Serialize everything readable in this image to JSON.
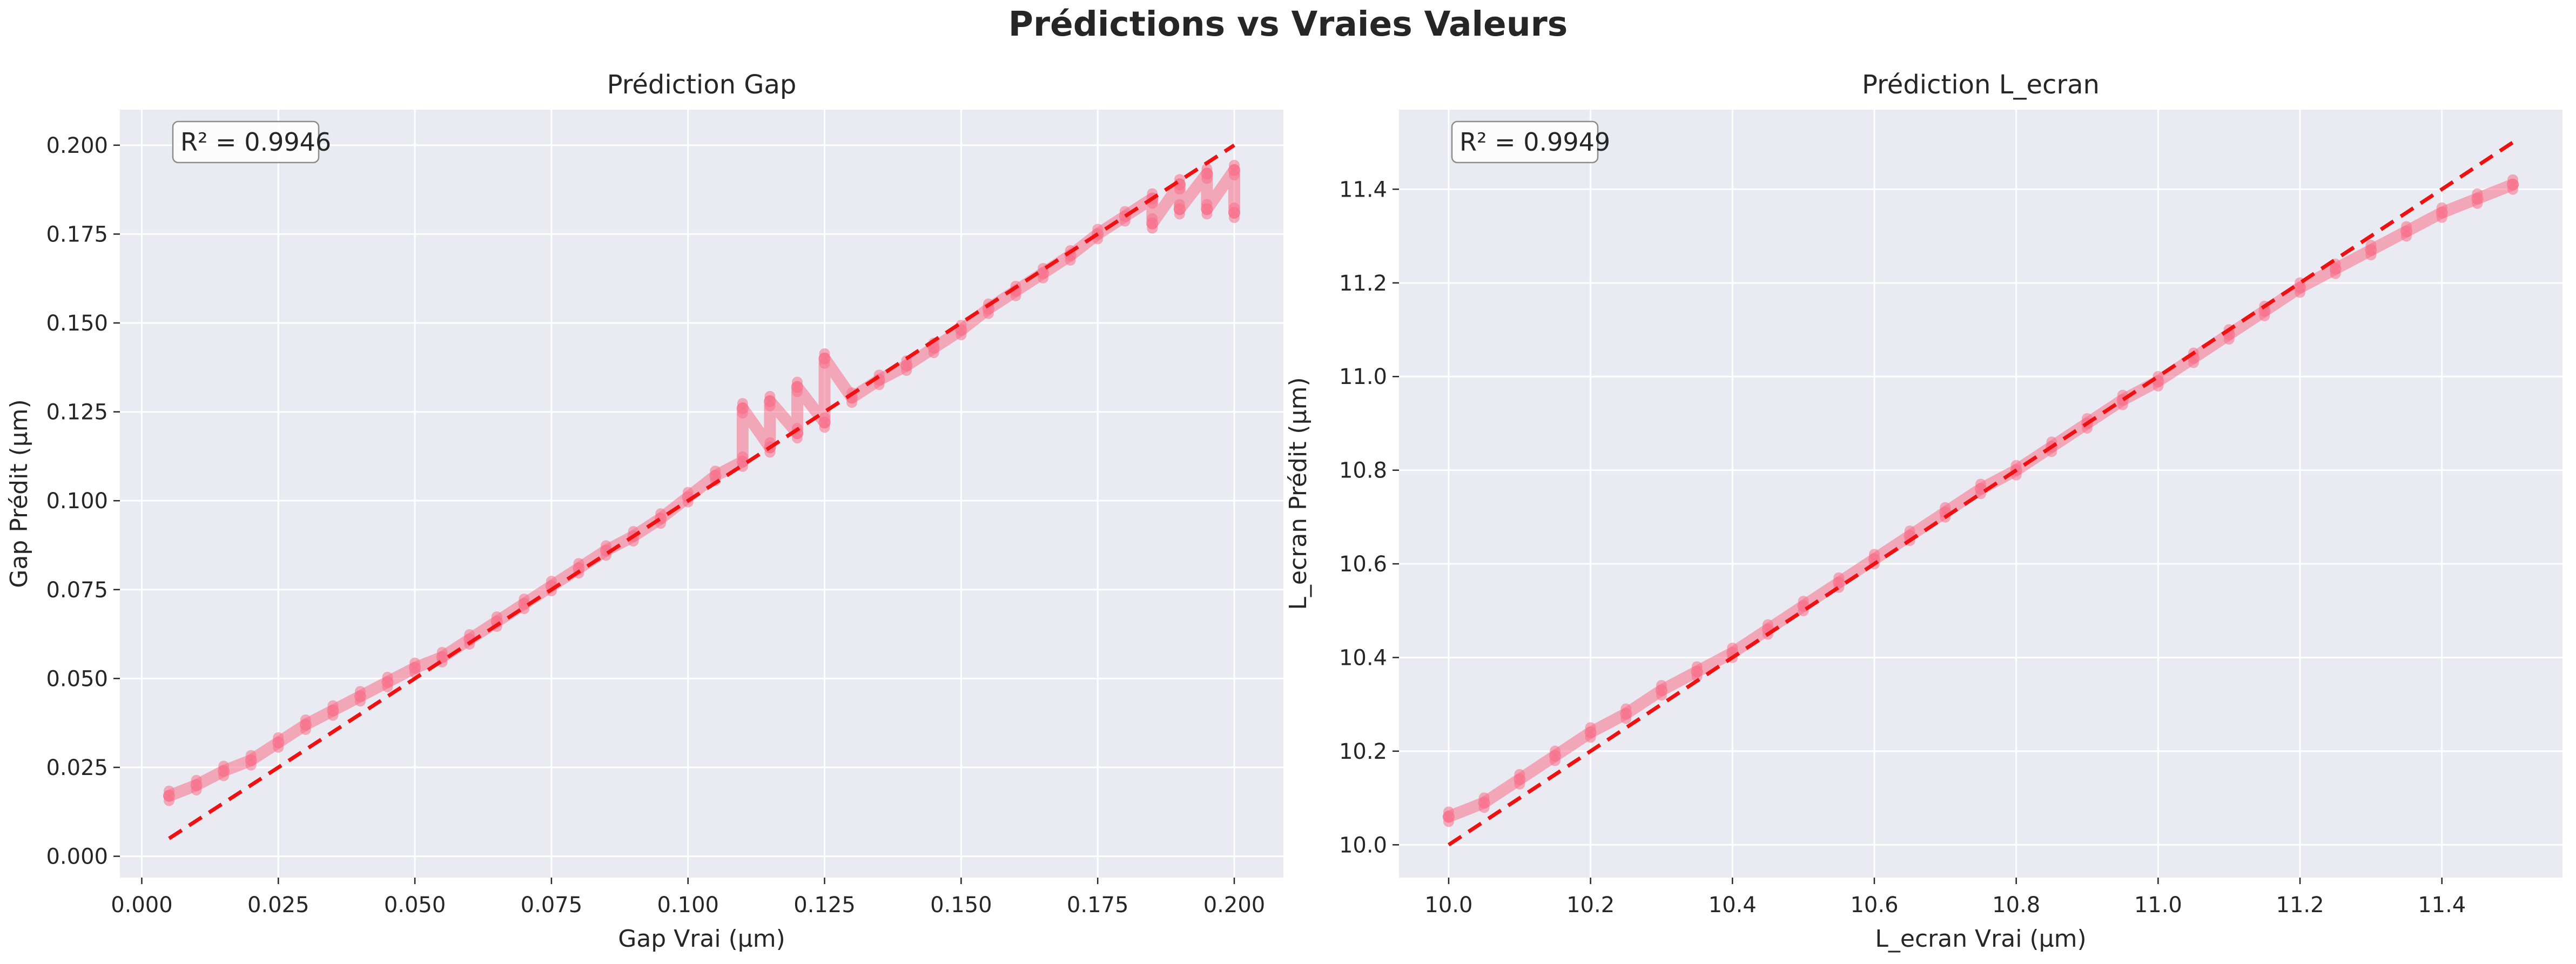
{
  "figure": {
    "suptitle": "Prédictions vs Vraies Valeurs"
  },
  "colors": {
    "panel_bg": "#EAEAF2",
    "grid": "#FFFFFF",
    "points": "#F7708A",
    "ideal_line": "#EE1111",
    "text": "#262626"
  },
  "chart_data": [
    {
      "type": "scatter",
      "title": "Prédiction Gap",
      "xlabel": "Gap Vrai (µm)",
      "ylabel": "Gap Prédit (µm)",
      "xlim": [
        -0.004,
        0.209
      ],
      "ylim": [
        -0.006,
        0.21
      ],
      "xticks": [
        0.0,
        0.025,
        0.05,
        0.075,
        0.1,
        0.125,
        0.15,
        0.175,
        0.2
      ],
      "xtick_labels": [
        "0.000",
        "0.025",
        "0.050",
        "0.075",
        "0.100",
        "0.125",
        "0.150",
        "0.175",
        "0.200"
      ],
      "yticks": [
        0.0,
        0.025,
        0.05,
        0.075,
        0.1,
        0.125,
        0.15,
        0.175,
        0.2
      ],
      "ytick_labels": [
        "0.000",
        "0.025",
        "0.050",
        "0.075",
        "0.100",
        "0.125",
        "0.150",
        "0.175",
        "0.200"
      ],
      "grid": true,
      "annotation": "R² = 0.9946",
      "ideal_line": {
        "x": [
          0.005,
          0.2
        ],
        "y": [
          0.005,
          0.2
        ]
      },
      "x": [
        0.005,
        0.01,
        0.015,
        0.02,
        0.025,
        0.03,
        0.035,
        0.04,
        0.045,
        0.05,
        0.055,
        0.06,
        0.065,
        0.07,
        0.075,
        0.08,
        0.085,
        0.09,
        0.095,
        0.1,
        0.105,
        0.11,
        0.115,
        0.12,
        0.125,
        0.13,
        0.135,
        0.14,
        0.145,
        0.15,
        0.155,
        0.16,
        0.165,
        0.17,
        0.175,
        0.18,
        0.185,
        0.19,
        0.195,
        0.2,
        0.11,
        0.115,
        0.12,
        0.125,
        0.185,
        0.19,
        0.195,
        0.2
      ],
      "y": [
        0.017,
        0.02,
        0.024,
        0.027,
        0.032,
        0.037,
        0.041,
        0.045,
        0.049,
        0.053,
        0.056,
        0.061,
        0.066,
        0.071,
        0.076,
        0.081,
        0.086,
        0.09,
        0.095,
        0.101,
        0.107,
        0.111,
        0.115,
        0.119,
        0.122,
        0.129,
        0.134,
        0.138,
        0.143,
        0.148,
        0.154,
        0.159,
        0.164,
        0.169,
        0.175,
        0.18,
        0.185,
        0.189,
        0.192,
        0.193,
        0.126,
        0.128,
        0.132,
        0.14,
        0.178,
        0.182,
        0.182,
        0.181
      ]
    },
    {
      "type": "scatter",
      "title": "Prédiction L_ecran",
      "xlabel": "L_ecran Vrai (µm)",
      "ylabel": "L_ecran Prédit (µm)",
      "xlim": [
        9.93,
        11.57
      ],
      "ylim": [
        9.93,
        11.57
      ],
      "xticks": [
        10.0,
        10.2,
        10.4,
        10.6,
        10.8,
        11.0,
        11.2,
        11.4
      ],
      "xtick_labels": [
        "10.0",
        "10.2",
        "10.4",
        "10.6",
        "10.8",
        "11.0",
        "11.2",
        "11.4"
      ],
      "yticks": [
        10.0,
        10.2,
        10.4,
        10.6,
        10.8,
        11.0,
        11.2,
        11.4
      ],
      "ytick_labels": [
        "10.0",
        "10.2",
        "10.4",
        "10.6",
        "10.8",
        "11.0",
        "11.2",
        "11.4"
      ],
      "grid": true,
      "annotation": "R² = 0.9949",
      "ideal_line": {
        "x": [
          10.0,
          11.5
        ],
        "y": [
          10.0,
          11.5
        ]
      },
      "x": [
        10.0,
        10.05,
        10.1,
        10.15,
        10.2,
        10.25,
        10.3,
        10.35,
        10.4,
        10.45,
        10.5,
        10.55,
        10.6,
        10.65,
        10.7,
        10.75,
        10.8,
        10.85,
        10.9,
        10.95,
        11.0,
        11.05,
        11.1,
        11.15,
        11.2,
        11.25,
        11.3,
        11.35,
        11.4,
        11.45,
        11.5
      ],
      "y": [
        10.06,
        10.09,
        10.14,
        10.19,
        10.24,
        10.28,
        10.33,
        10.37,
        10.41,
        10.46,
        10.51,
        10.56,
        10.61,
        10.66,
        10.71,
        10.76,
        10.8,
        10.85,
        10.9,
        10.95,
        10.99,
        11.04,
        11.09,
        11.14,
        11.19,
        11.23,
        11.27,
        11.31,
        11.35,
        11.38,
        11.41
      ]
    }
  ]
}
